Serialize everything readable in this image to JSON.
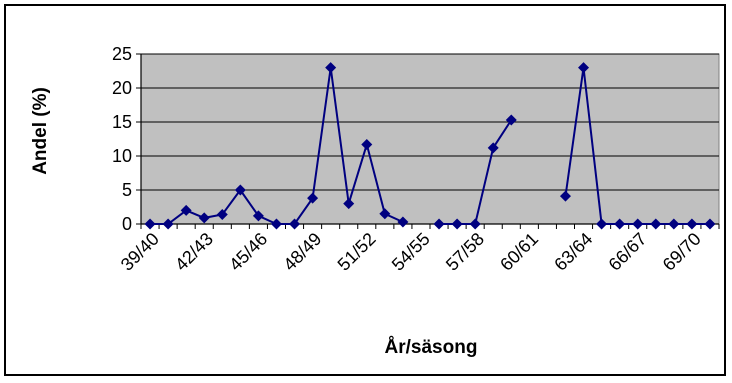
{
  "chart_data": {
    "type": "line",
    "title": "",
    "xlabel": "År/säsong",
    "ylabel": "Andel (%)",
    "ylim": [
      0,
      25
    ],
    "yticks": [
      0,
      5,
      10,
      15,
      20,
      25
    ],
    "grid": true,
    "legend": "none",
    "x": [
      "39/40",
      "40/41",
      "41/42",
      "42/43",
      "43/44",
      "44/45",
      "45/46",
      "46/47",
      "47/48",
      "48/49",
      "49/50",
      "50/51",
      "51/52",
      "52/53",
      "53/54",
      "54/55",
      "55/56",
      "56/57",
      "57/58",
      "58/59",
      "59/60",
      "60/61",
      "61/62",
      "62/63",
      "63/64",
      "64/65",
      "65/66",
      "66/67",
      "67/68",
      "68/69",
      "69/70",
      "70/71"
    ],
    "x_tick_labels": [
      "39/40",
      "42/43",
      "45/46",
      "48/49",
      "51/52",
      "54/55",
      "57/58",
      "60/61",
      "63/64",
      "66/67",
      "69/70"
    ],
    "series": [
      {
        "values": [
          0,
          0,
          2,
          0.9,
          1.4,
          5,
          1.2,
          0,
          0,
          3.8,
          23,
          3,
          11.7,
          1.5,
          0.3,
          null,
          0,
          0,
          0,
          11.2,
          15.3,
          null,
          null,
          4.1,
          23,
          0,
          0,
          0,
          0,
          0,
          0,
          0
        ],
        "color": "#000080"
      }
    ],
    "plot_background": "#c0c0c0"
  }
}
